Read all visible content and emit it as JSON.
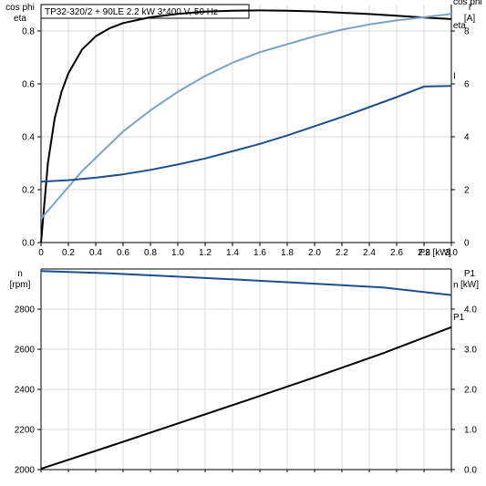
{
  "chart_data": [
    {
      "type": "line",
      "title": "TP32-320/2 + 90LE   2.2 kW   3*400 V, 50 Hz",
      "xlabel": "P2 [kW]",
      "xlim": [
        0,
        3.0
      ],
      "xticks": [
        "0",
        "0.2",
        "0.4",
        "0.6",
        "0.8",
        "1.0",
        "1.2",
        "1.4",
        "1.6",
        "1.8",
        "2.0",
        "2.2",
        "2.4",
        "2.6",
        "2.8",
        "3.0"
      ],
      "left_axis": {
        "label_line1": "cos phi",
        "label_line2": "eta",
        "ylim": [
          0,
          0.9
        ],
        "ticks": [
          "0.0",
          "0.2",
          "0.4",
          "0.6",
          "0.8"
        ]
      },
      "right_axis": {
        "label_line1": "I",
        "label_line2": "[A]",
        "ylim": [
          0,
          9
        ],
        "ticks": [
          "0",
          "2",
          "4",
          "6",
          "8"
        ]
      },
      "grid": true,
      "series": [
        {
          "name": "eta",
          "axis": "left",
          "color": "#000000",
          "x": [
            0,
            0.02,
            0.05,
            0.1,
            0.15,
            0.2,
            0.3,
            0.4,
            0.5,
            0.6,
            0.8,
            1.0,
            1.2,
            1.4,
            1.6,
            1.8,
            2.0,
            2.2,
            2.4,
            2.6,
            2.8,
            3.0
          ],
          "y": [
            0.0,
            0.12,
            0.3,
            0.47,
            0.57,
            0.64,
            0.73,
            0.78,
            0.81,
            0.83,
            0.852,
            0.865,
            0.873,
            0.877,
            0.878,
            0.877,
            0.874,
            0.869,
            0.864,
            0.858,
            0.851,
            0.845
          ]
        },
        {
          "name": "cos phi",
          "axis": "left",
          "color": "#7aa3c7",
          "x": [
            0,
            0.1,
            0.2,
            0.3,
            0.4,
            0.5,
            0.6,
            0.8,
            1.0,
            1.2,
            1.4,
            1.6,
            1.8,
            2.0,
            2.2,
            2.4,
            2.6,
            2.8,
            3.0
          ],
          "y": [
            0.09,
            0.15,
            0.21,
            0.27,
            0.32,
            0.37,
            0.42,
            0.5,
            0.57,
            0.63,
            0.68,
            0.72,
            0.75,
            0.78,
            0.805,
            0.825,
            0.84,
            0.852,
            0.865
          ]
        },
        {
          "name": "I",
          "axis": "right",
          "color": "#1f4e8c",
          "x": [
            0,
            0.2,
            0.4,
            0.6,
            0.8,
            1.0,
            1.2,
            1.4,
            1.6,
            1.8,
            2.0,
            2.2,
            2.4,
            2.6,
            2.8,
            3.0
          ],
          "y": [
            2.3,
            2.36,
            2.45,
            2.58,
            2.75,
            2.95,
            3.18,
            3.45,
            3.73,
            4.05,
            4.4,
            4.75,
            5.12,
            5.5,
            5.9,
            5.92
          ]
        }
      ]
    },
    {
      "type": "line",
      "xlim": [
        0,
        3.0
      ],
      "left_axis": {
        "label_line1": "n",
        "label_line2": "[rpm]",
        "ylim": [
          2000,
          3000
        ],
        "ticks": [
          "2000",
          "2200",
          "2400",
          "2600",
          "2800"
        ]
      },
      "right_axis": {
        "label_line1": "P1",
        "label_line2": "[kW]",
        "ylim": [
          0,
          5.0
        ],
        "ticks": [
          "0.0",
          "1.0",
          "2.0",
          "3.0",
          "4.0"
        ]
      },
      "grid": true,
      "series": [
        {
          "name": "n",
          "axis": "left",
          "color": "#1f4e8c",
          "x": [
            0,
            0.5,
            1.0,
            1.5,
            2.0,
            2.5,
            3.0
          ],
          "y": [
            2990,
            2978,
            2962,
            2945,
            2927,
            2908,
            2870
          ]
        },
        {
          "name": "P1",
          "axis": "right",
          "color": "#000000",
          "x": [
            0,
            0.5,
            1.0,
            1.5,
            2.0,
            2.5,
            3.0
          ],
          "y": [
            0.02,
            0.58,
            1.15,
            1.72,
            2.3,
            2.9,
            3.55
          ]
        }
      ]
    }
  ]
}
